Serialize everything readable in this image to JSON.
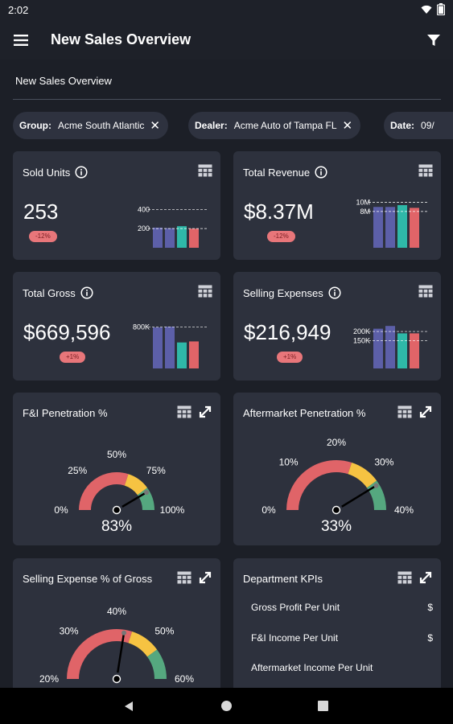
{
  "status": {
    "time": "2:02"
  },
  "app": {
    "title": "New Sales Overview"
  },
  "page": {
    "section_title": "New Sales Overview"
  },
  "filters": [
    {
      "key": "Group:",
      "value": "Acme South Atlantic"
    },
    {
      "key": "Dealer:",
      "value": "Acme Auto of Tampa FL"
    },
    {
      "key": "Date:",
      "value": "09/"
    }
  ],
  "kpis": {
    "sold_units": {
      "title": "Sold Units",
      "value": "253",
      "badge": "-12%",
      "chart_data": {
        "type": "bar",
        "ticks": [
          "400",
          "200"
        ],
        "tick_values": [
          400,
          200
        ],
        "ylim": [
          0,
          520
        ],
        "values": [
          210,
          205,
          225,
          200
        ]
      }
    },
    "total_revenue": {
      "title": "Total Revenue",
      "value": "$8.37M",
      "badge": "-12%",
      "chart_data": {
        "type": "bar",
        "ticks": [
          "10M",
          "8M"
        ],
        "tick_values": [
          10,
          8
        ],
        "ylim": [
          0,
          11
        ],
        "values": [
          9.0,
          9.0,
          9.4,
          8.8
        ]
      }
    },
    "total_gross": {
      "title": "Total Gross",
      "value": "$669,596",
      "badge": "+1%",
      "chart_data": {
        "type": "bar",
        "ticks": [
          "800K"
        ],
        "tick_values": [
          800
        ],
        "ylim": [
          0,
          960
        ],
        "values": [
          790,
          805,
          500,
          520
        ]
      }
    },
    "selling_expenses": {
      "title": "Selling Expenses",
      "value": "$216,949",
      "badge": "+1%",
      "chart_data": {
        "type": "bar",
        "ticks": [
          "200K",
          "150K"
        ],
        "tick_values": [
          200,
          150
        ],
        "ylim": [
          0,
          270
        ],
        "values": [
          215,
          230,
          190,
          190
        ]
      }
    }
  },
  "gauges": {
    "fi_penetration": {
      "title": "F&I Penetration %",
      "value_label": "83%",
      "value": 83,
      "max": 100,
      "labels": [
        "0%",
        "25%",
        "50%",
        "75%",
        "100%"
      ]
    },
    "aftermarket_penetration": {
      "title": "Aftermarket Penetration %",
      "value_label": "33%",
      "value": 33,
      "max": 40,
      "labels": [
        "0%",
        "10%",
        "20%",
        "30%",
        "40%"
      ]
    },
    "selling_expense_pct": {
      "title": "Selling Expense % of Gross",
      "value": 33,
      "max": 60,
      "labels": [
        "20%",
        "30%",
        "40%",
        "50%",
        "60%"
      ]
    }
  },
  "department_kpis": {
    "title": "Department KPIs",
    "rows": [
      {
        "label": "Gross Profit Per Unit",
        "value": "$"
      },
      {
        "label": "F&I Income Per Unit",
        "value": "$"
      },
      {
        "label": "Aftermarket Income Per Unit",
        "value": ""
      }
    ]
  },
  "colors": {
    "bar_colors": [
      "#5c5fa8",
      "#5c5fa8",
      "#2fb8a8",
      "#e06468"
    ],
    "gauge_red": "#e06468",
    "gauge_yellow": "#f6c342",
    "gauge_green": "#55a87f",
    "accent_badge": "#e8767a"
  },
  "icons": [
    "menu-icon",
    "filter-icon",
    "info-icon",
    "table-icon",
    "expand-icon",
    "close-icon",
    "wifi-icon",
    "battery-icon",
    "back-icon",
    "home-icon",
    "recents-icon"
  ]
}
